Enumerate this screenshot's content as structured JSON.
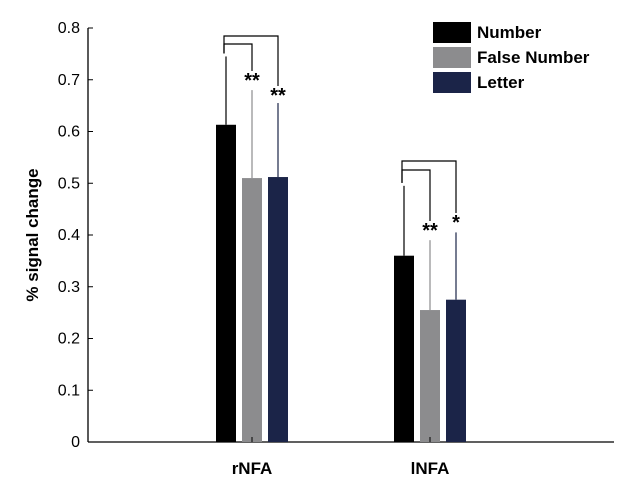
{
  "chart_data": {
    "type": "bar",
    "ylabel": "% signal change",
    "xlabel": "",
    "ylim": [
      0,
      0.8
    ],
    "yticks": [
      "0",
      "0.1",
      "0.2",
      "0.3",
      "0.4",
      "0.5",
      "0.6",
      "0.7",
      "0.8"
    ],
    "categories": [
      "rNFA",
      "lNFA"
    ],
    "legend_position": "top-right",
    "series": [
      {
        "name": "Number",
        "color": "#000000",
        "values": [
          0.613,
          0.36
        ],
        "error_upper": [
          0.745,
          0.495
        ]
      },
      {
        "name": "False Number",
        "color": "#8c8c8e",
        "values": [
          0.51,
          0.255
        ],
        "error_upper": [
          0.68,
          0.39
        ]
      },
      {
        "name": "Letter",
        "color": "#1b2448",
        "values": [
          0.512,
          0.275
        ],
        "error_upper": [
          0.655,
          0.405
        ]
      }
    ],
    "significance": [
      {
        "category": "rNFA",
        "compare": "False Number",
        "label": "**"
      },
      {
        "category": "rNFA",
        "compare": "Letter",
        "label": "**"
      },
      {
        "category": "lNFA",
        "compare": "False Number",
        "label": "**"
      },
      {
        "category": "lNFA",
        "compare": "Letter",
        "label": "*"
      }
    ]
  }
}
